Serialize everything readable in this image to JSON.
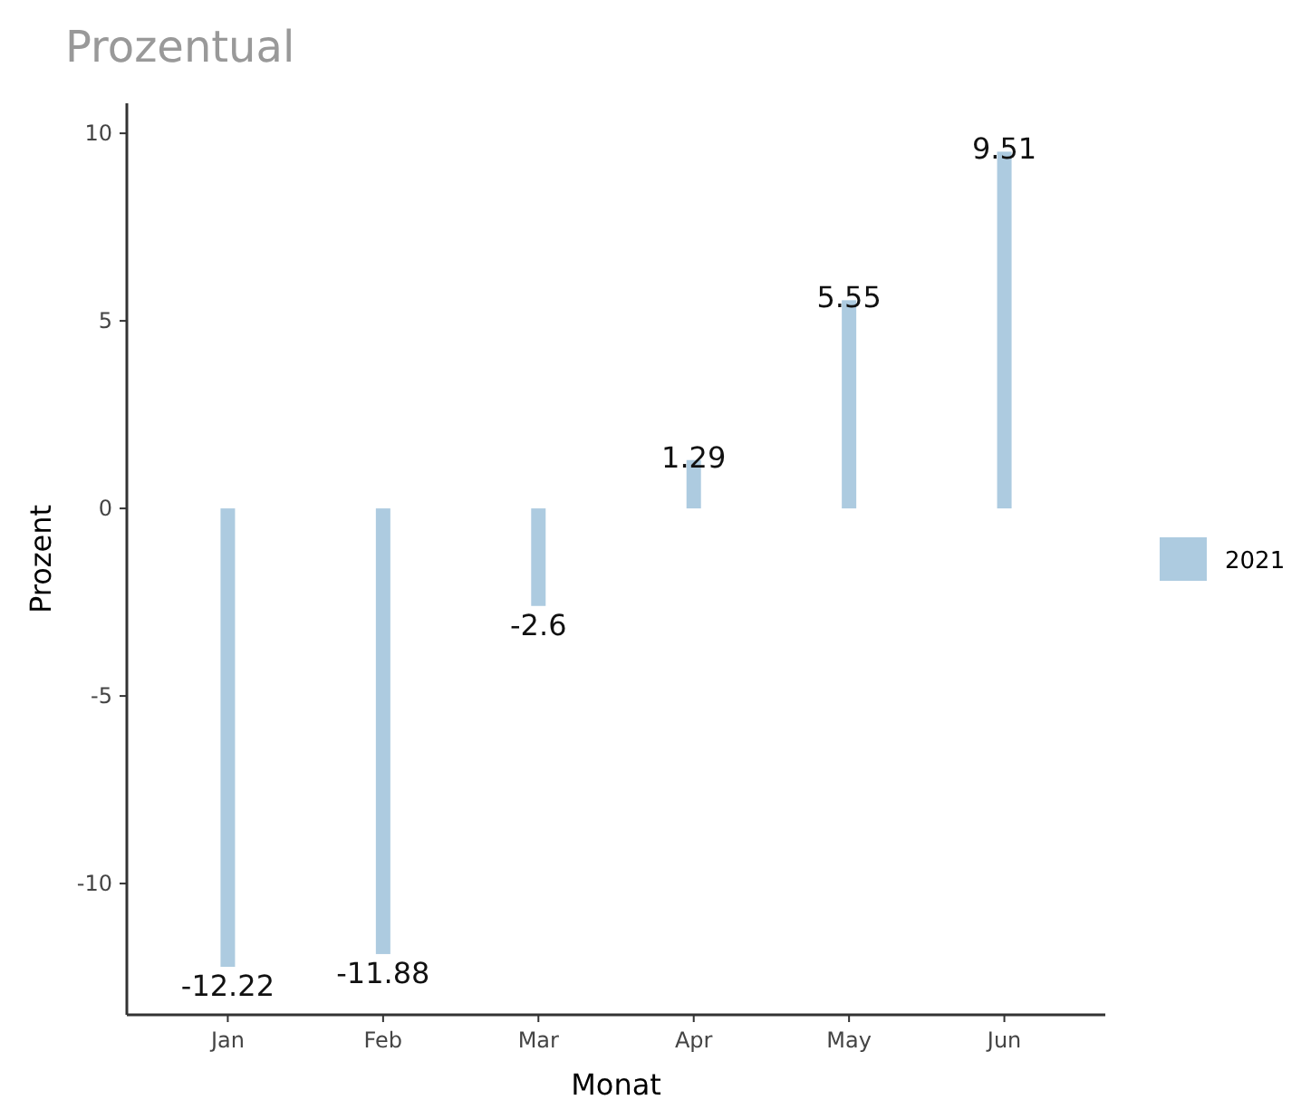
{
  "chart_data": {
    "type": "bar",
    "title": "Prozentual",
    "xlabel": "Monat",
    "ylabel": "Prozent",
    "categories": [
      "Jan",
      "Feb",
      "Mar",
      "Apr",
      "May",
      "Jun"
    ],
    "series": [
      {
        "name": "2021",
        "color": "#adcbe0",
        "values": [
          -12.22,
          -11.88,
          -2.6,
          1.29,
          5.55,
          9.51
        ]
      }
    ],
    "ylim": [
      -13.5,
      10.8
    ],
    "yticks": [
      -10,
      -5,
      0,
      5,
      10
    ],
    "grid": false,
    "legend": "right",
    "data_labels": true
  }
}
